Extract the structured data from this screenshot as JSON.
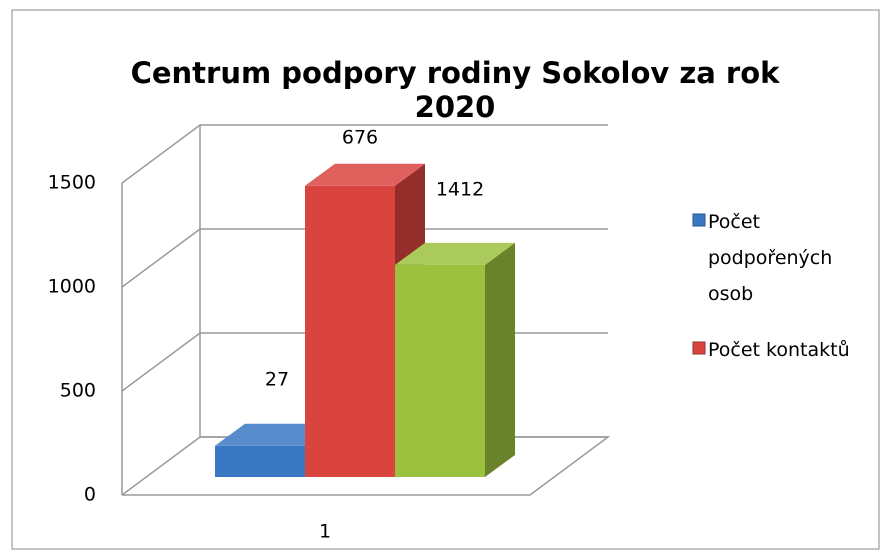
{
  "chart_data": {
    "type": "bar3d",
    "title": "Centrum podpory rodiny Sokolov za rok 2020",
    "categories": [
      "1"
    ],
    "series": [
      {
        "name": "Počet podpořených osob",
        "color": "#3b78c4",
        "values": [
          150
        ]
      },
      {
        "name": "Počet kontaktů",
        "color": "#d9443f",
        "values": [
          1400
        ]
      },
      {
        "color": "#9bc13e",
        "values": [
          1020
        ]
      }
    ],
    "annotations": [
      "27",
      "676",
      "1412"
    ],
    "ylim": [
      0,
      1500
    ],
    "yticks": [
      0,
      500,
      1000,
      1500
    ],
    "grid": true,
    "legend": "right"
  }
}
